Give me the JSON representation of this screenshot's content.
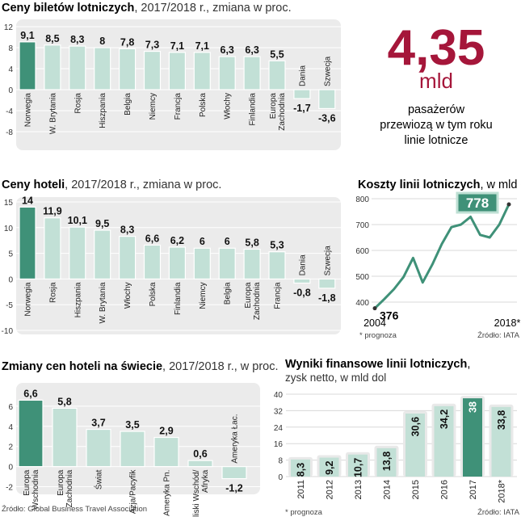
{
  "panels": {
    "tickets": {
      "title_bold": "Ceny biletów lotniczych",
      "title_rest": ", 2017/2018 r., zmiana w proc.",
      "chart_data": {
        "type": "bar",
        "title": "Ceny biletów lotniczych, 2017/2018 r., zmiana w proc.",
        "categories": [
          "Norwegia",
          "W. Brytania",
          "Rosja",
          "Hiszpania",
          "Belgia",
          "Niemcy",
          "Francja",
          "Polska",
          "Włochy",
          "Finlandia",
          "Europa Zachodnia",
          "Dania",
          "Szwecja"
        ],
        "values": [
          9.1,
          8.5,
          8.3,
          8,
          7.8,
          7.3,
          7.1,
          7.1,
          6.3,
          6.3,
          5.5,
          -1.7,
          -3.6
        ],
        "value_labels": [
          "9,1",
          "8,5",
          "8,3",
          "8",
          "7,8",
          "7,3",
          "7,1",
          "7,1",
          "6,3",
          "6,3",
          "5,5",
          "-1,7",
          "-3,6"
        ],
        "yticks": [
          -8,
          -4,
          0,
          4,
          8,
          12
        ],
        "ylim": [
          -8,
          12
        ],
        "highlight_index": 0
      }
    },
    "big_stat": {
      "number": "4,35",
      "unit": "mld",
      "line1": "pasażerów",
      "line2": "przewiozą w tym roku",
      "line3": "linie lotnicze"
    },
    "hotels": {
      "title_bold": "Ceny hoteli",
      "title_rest": ", 2017/2018 r., zmiana w proc.",
      "chart_data": {
        "type": "bar",
        "title": "Ceny hoteli, 2017/2018 r., zmiana w proc.",
        "categories": [
          "Norwegia",
          "Rosja",
          "Hiszpania",
          "W. Brytania",
          "Włochy",
          "Polska",
          "Finlandia",
          "Niemcy",
          "Belgia",
          "Europa Zachodnia",
          "Francja",
          "Dania",
          "Szwecja"
        ],
        "values": [
          14,
          11.9,
          10.1,
          9.5,
          8.3,
          6.6,
          6.2,
          6,
          6,
          5.8,
          5.3,
          -0.8,
          -1.8
        ],
        "value_labels": [
          "14",
          "11,9",
          "10,1",
          "9,5",
          "8,3",
          "6,6",
          "6,2",
          "6",
          "6",
          "5,8",
          "5,3",
          "-0,8",
          "-1,8"
        ],
        "yticks": [
          -10,
          -5,
          0,
          5,
          10,
          15
        ],
        "ylim": [
          -10,
          15
        ],
        "highlight_index": 0
      }
    },
    "costs": {
      "title_bold": "Koszty linii lotniczych",
      "title_rest": ", w mld dol.",
      "footnote": "* prognoza",
      "source": "Źródło: IATA",
      "chart_data": {
        "type": "line",
        "title": "Koszty linii lotniczych, w mld dol.",
        "x": [
          2004,
          2005,
          2006,
          2007,
          2008,
          2009,
          2010,
          2011,
          2012,
          2013,
          2014,
          2015,
          2016,
          2017,
          2018
        ],
        "values": [
          376,
          412,
          450,
          497,
          571,
          476,
          545,
          625,
          690,
          700,
          730,
          660,
          650,
          700,
          778
        ],
        "yticks": [
          400,
          500,
          600,
          700,
          800
        ],
        "ylim": [
          350,
          800
        ],
        "xlabels": [
          "2004",
          "2018*"
        ],
        "start_label": "376",
        "end_label": "778"
      }
    },
    "world_hotels": {
      "title_bold": "Zmiany cen hoteli na świecie",
      "title_rest": ", 2017/2018 r., w proc.",
      "source": "Źródło: Global Business Travel Association",
      "chart_data": {
        "type": "bar",
        "title": "Zmiany cen hoteli na świecie, 2017/2018 r., w proc.",
        "categories": [
          "Europa Wschodnia",
          "Europa Zachodnia",
          "Świat",
          "Azja/Pacyfik",
          "Ameryka Pn.",
          "Bliski Wschód/ Afryka",
          "Ameryka Łac."
        ],
        "values": [
          6.6,
          5.8,
          3.7,
          3.5,
          2.9,
          0.6,
          -1.2
        ],
        "value_labels": [
          "6,6",
          "5,8",
          "3,7",
          "3,5",
          "2,9",
          "0,6",
          "-1,2"
        ],
        "yticks": [
          -2,
          0,
          2,
          4,
          6
        ],
        "ylim": [
          -2.6,
          8
        ],
        "highlight_index": 0
      }
    },
    "results": {
      "title_bold": "Wyniki finansowe linii lotniczych",
      "title_rest": ",",
      "subtitle": "zysk netto, w mld dol",
      "footnote": "* prognoza",
      "source": "Źródło: IATA",
      "chart_data": {
        "type": "bar",
        "title": "Wyniki finansowe linii lotniczych, zysk netto, w mld dol",
        "categories": [
          "2011",
          "2012",
          "2013",
          "2014",
          "2015",
          "2016",
          "2017",
          "2018*"
        ],
        "values": [
          8.3,
          9.2,
          10.7,
          13.8,
          30.6,
          34.2,
          38,
          33.8
        ],
        "value_labels": [
          "8,3",
          "9,2",
          "10,7",
          "13,8",
          "30,6",
          "34,2",
          "38",
          "33,8"
        ],
        "yticks": [
          0,
          8,
          16,
          24,
          32,
          40
        ],
        "ylim": [
          0,
          40
        ],
        "highlight_index": 6
      }
    }
  },
  "colors": {
    "bar_light": "#c2e0d6",
    "bar_dark": "#3f9178",
    "panel_bg": "#ebebeb",
    "accent_red": "#a5163a",
    "line_green": "#3f9178"
  }
}
